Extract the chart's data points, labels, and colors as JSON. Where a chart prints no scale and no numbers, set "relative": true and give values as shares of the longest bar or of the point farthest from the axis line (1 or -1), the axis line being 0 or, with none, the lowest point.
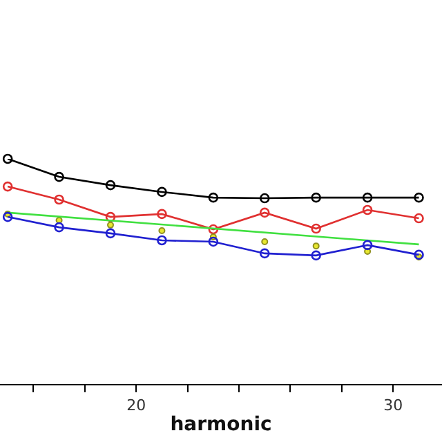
{
  "chart_data": {
    "type": "line",
    "xlabel": "harmonic",
    "relative": true,
    "tick_labels": "x",
    "x": [
      15,
      17,
      19,
      21,
      23,
      25,
      27,
      29,
      31
    ],
    "xlim": [
      14.7,
      31.9
    ],
    "xticks": [
      {
        "value": 16,
        "label": null
      },
      {
        "value": 18,
        "label": null
      },
      20,
      {
        "value": 22,
        "label": null
      },
      {
        "value": 24,
        "label": null
      },
      {
        "value": 26,
        "label": null
      },
      {
        "value": 28,
        "label": null
      },
      30
    ],
    "series": [
      {
        "color": "#000000",
        "marker": "circle",
        "values": [
          1,
          0.92,
          0.883,
          0.853,
          0.828,
          0.825,
          0.828,
          0.828,
          0.828
        ]
      },
      {
        "color": "#e03030",
        "marker": "circle",
        "values": [
          0.877,
          0.819,
          0.742,
          0.755,
          0.687,
          0.761,
          0.69,
          0.773,
          0.736
        ]
      },
      {
        "color": "#e8e830",
        "marker": "circle",
        "type": "scatter",
        "values": [
          0.755,
          0.727,
          0.706,
          0.681,
          0.653,
          0.632,
          0.613,
          0.589,
          0.564
        ]
      },
      {
        "color": "#40e040",
        "marker": "none",
        "x": [
          15,
          31
        ],
        "values": [
          0.761,
          0.62
        ]
      },
      {
        "color": "#2020d0",
        "marker": "circle",
        "values": [
          0.742,
          0.696,
          0.669,
          0.638,
          0.632,
          0.58,
          0.571,
          0.617,
          0.574
        ]
      }
    ]
  }
}
